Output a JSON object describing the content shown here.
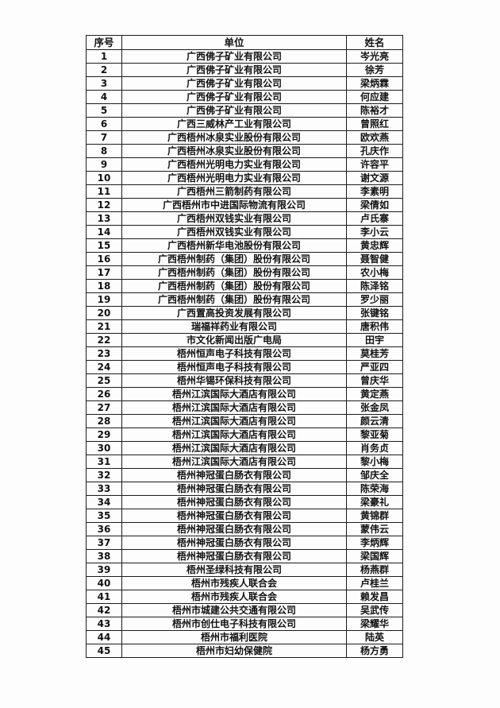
{
  "document": {
    "headers": {
      "no": "序号",
      "unit": "单位",
      "name": "姓名"
    },
    "rows": [
      {
        "no": "1",
        "unit": "广西佛子矿业有限公司",
        "name": "岑光亮"
      },
      {
        "no": "2",
        "unit": "广西佛子矿业有限公司",
        "name": "徐芳"
      },
      {
        "no": "3",
        "unit": "广西佛子矿业有限公司",
        "name": "梁炳霖"
      },
      {
        "no": "4",
        "unit": "广西佛子矿业有限公司",
        "name": "何应建"
      },
      {
        "no": "5",
        "unit": "广西佛子矿业有限公司",
        "name": "陈裕才"
      },
      {
        "no": "6",
        "unit": "广西三威林产工业有限公司",
        "name": "曾照红"
      },
      {
        "no": "7",
        "unit": "广西梧州冰泉实业股份有限公司",
        "name": "欧欢燕"
      },
      {
        "no": "8",
        "unit": "广西梧州冰泉实业股份有限公司",
        "name": "孔庆作"
      },
      {
        "no": "9",
        "unit": "广西梧州光明电力实业有限公司",
        "name": "许容平"
      },
      {
        "no": "10",
        "unit": "广西梧州光明电力实业有限公司",
        "name": "谢文源"
      },
      {
        "no": "11",
        "unit": "广西梧州三箭制药有限公司",
        "name": "李素明"
      },
      {
        "no": "12",
        "unit": "广西梧州市中进国际物流有限公司",
        "name": "梁倩如"
      },
      {
        "no": "13",
        "unit": "广西梧州双钱实业有限公司",
        "name": "卢氏寨"
      },
      {
        "no": "14",
        "unit": "广西梧州双钱实业有限公司",
        "name": "李小云"
      },
      {
        "no": "15",
        "unit": "广西梧州新华电池股份有限公司",
        "name": "黄忠辉"
      },
      {
        "no": "16",
        "unit": "广西梧州制药（集团）股份有限公司",
        "name": "聂智健"
      },
      {
        "no": "17",
        "unit": "广西梧州制药（集团）股份有限公司",
        "name": "农小梅"
      },
      {
        "no": "18",
        "unit": "广西梧州制药（集团）股份有限公司",
        "name": "陈泽铭"
      },
      {
        "no": "19",
        "unit": "广西梧州制药（集团）股份有限公司",
        "name": "罗少丽"
      },
      {
        "no": "20",
        "unit": "广西置高投资发展有限公司",
        "name": "张键铭"
      },
      {
        "no": "21",
        "unit": "瑞福祥药业有限公司",
        "name": "唐积伟"
      },
      {
        "no": "22",
        "unit": "市文化新闻出版广电局",
        "name": "田宇"
      },
      {
        "no": "23",
        "unit": "梧州恒声电子科技有限公司",
        "name": "莫桂芳"
      },
      {
        "no": "24",
        "unit": "梧州恒声电子科技有限公司",
        "name": "严亚四"
      },
      {
        "no": "25",
        "unit": "梧州华锡环保科技有限公司",
        "name": "曾庆华"
      },
      {
        "no": "26",
        "unit": "梧州江滨国际大酒店有限公司",
        "name": "黄定燕"
      },
      {
        "no": "27",
        "unit": "梧州江滨国际大酒店有限公司",
        "name": "张金凤"
      },
      {
        "no": "28",
        "unit": "梧州江滨国际大酒店有限公司",
        "name": "颜云清"
      },
      {
        "no": "29",
        "unit": "梧州江滨国际大酒店有限公司",
        "name": "黎亚菊"
      },
      {
        "no": "30",
        "unit": "梧州江滨国际大酒店有限公司",
        "name": "肖务贞"
      },
      {
        "no": "31",
        "unit": "梧州江滨国际大酒店有限公司",
        "name": "黎小梅"
      },
      {
        "no": "32",
        "unit": "梧州神冠蛋白肠衣有限公司",
        "name": "邹庆全"
      },
      {
        "no": "33",
        "unit": "梧州神冠蛋白肠衣有限公司",
        "name": "陈荣海"
      },
      {
        "no": "34",
        "unit": "梧州神冠蛋白肠衣有限公司",
        "name": "梁豪礼"
      },
      {
        "no": "35",
        "unit": "梧州神冠蛋白肠衣有限公司",
        "name": "黄锦群"
      },
      {
        "no": "36",
        "unit": "梧州神冠蛋白肠衣有限公司",
        "name": "蒙伟云"
      },
      {
        "no": "37",
        "unit": "梧州神冠蛋白肠衣有限公司",
        "name": "李炳辉"
      },
      {
        "no": "38",
        "unit": "梧州神冠蛋白肠衣有限公司",
        "name": "梁国辉"
      },
      {
        "no": "39",
        "unit": "梧州圣绿科技有限公司",
        "name": "杨燕群"
      },
      {
        "no": "40",
        "unit": "梧州市残疾人联合会",
        "name": "卢桂兰"
      },
      {
        "no": "41",
        "unit": "梧州市残疾人联合会",
        "name": "赖发昌"
      },
      {
        "no": "42",
        "unit": "梧州市城建公共交通有限公司",
        "name": "吴武传"
      },
      {
        "no": "43",
        "unit": "梧州市创仕电子科技有限公司",
        "name": "梁耀华"
      },
      {
        "no": "44",
        "unit": "梧州市福利医院",
        "name": "陆英"
      },
      {
        "no": "45",
        "unit": "梧州市妇幼保健院",
        "name": "杨方勇"
      }
    ]
  }
}
